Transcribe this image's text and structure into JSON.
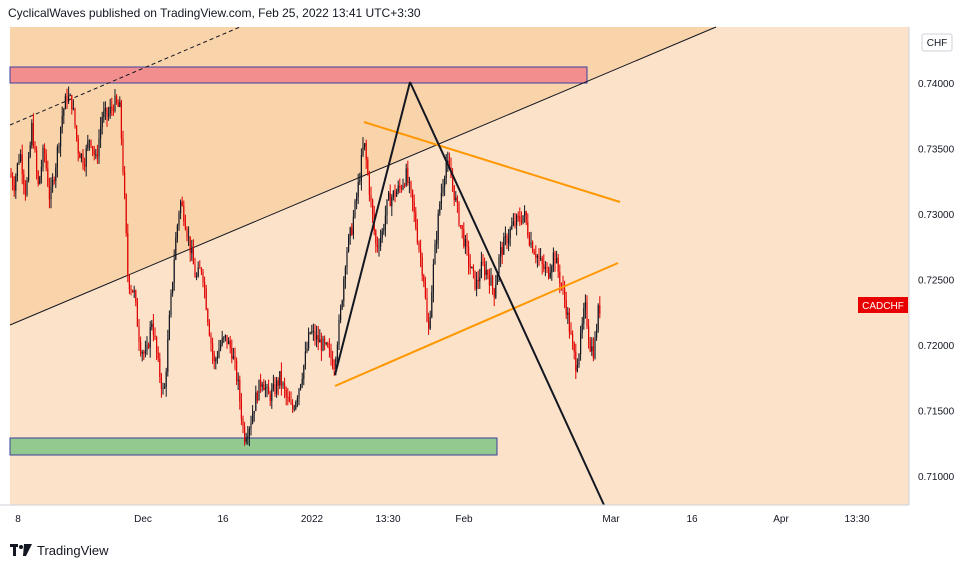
{
  "header": {
    "publish_line": "CyclicalWaves published on TradingView.com, Feb 25, 2022 13:41 UTC+3:30"
  },
  "footer": {
    "brand": "TradingView"
  },
  "colors": {
    "background": "#fbe2c8",
    "upper_zone": "#f9d3a9",
    "up_candle": "#131722",
    "down_candle": "#e00000",
    "resistance_zone": "#f28e8e",
    "support_zone": "#93c98f",
    "orange_line": "#ff9800",
    "price_label": "#e80000"
  },
  "chart_data": {
    "type": "candlestick",
    "symbol": "CADCHF",
    "currency_label": "CHF",
    "y_ticks": [
      "0.74000",
      "0.73500",
      "0.73000",
      "0.72500",
      "0.72000",
      "0.71500",
      "0.71000"
    ],
    "x_ticks": [
      "8",
      "Dec",
      "16",
      "2022",
      "13:30",
      "Feb",
      "Mar",
      "16",
      "Apr",
      "13:30"
    ],
    "ylim": [
      0.7067,
      0.7447
    ],
    "price_anchors": [
      [
        8,
        0.7335
      ],
      [
        14,
        0.7322
      ],
      [
        20,
        0.7348
      ],
      [
        26,
        0.7315
      ],
      [
        32,
        0.7368
      ],
      [
        38,
        0.732
      ],
      [
        44,
        0.735
      ],
      [
        50,
        0.731
      ],
      [
        56,
        0.734
      ],
      [
        62,
        0.7375
      ],
      [
        67,
        0.739
      ],
      [
        72,
        0.7385
      ],
      [
        78,
        0.735
      ],
      [
        84,
        0.734
      ],
      [
        90,
        0.736
      ],
      [
        96,
        0.734
      ],
      [
        102,
        0.7375
      ],
      [
        108,
        0.7375
      ],
      [
        114,
        0.7385
      ],
      [
        120,
        0.738
      ],
      [
        124,
        0.732
      ],
      [
        128,
        0.725
      ],
      [
        134,
        0.724
      ],
      [
        140,
        0.72
      ],
      [
        146,
        0.719
      ],
      [
        152,
        0.722
      ],
      [
        158,
        0.7185
      ],
      [
        164,
        0.716
      ],
      [
        170,
        0.7225
      ],
      [
        175,
        0.7275
      ],
      [
        180,
        0.731
      ],
      [
        184,
        0.73
      ],
      [
        190,
        0.7275
      ],
      [
        196,
        0.725
      ],
      [
        202,
        0.726
      ],
      [
        208,
        0.722
      ],
      [
        214,
        0.7185
      ],
      [
        220,
        0.72
      ],
      [
        226,
        0.7205
      ],
      [
        232,
        0.7195
      ],
      [
        238,
        0.717
      ],
      [
        244,
        0.713
      ],
      [
        250,
        0.714
      ],
      [
        256,
        0.716
      ],
      [
        262,
        0.7175
      ],
      [
        268,
        0.716
      ],
      [
        274,
        0.7165
      ],
      [
        280,
        0.7175
      ],
      [
        286,
        0.716
      ],
      [
        292,
        0.715
      ],
      [
        298,
        0.7165
      ],
      [
        304,
        0.7185
      ],
      [
        310,
        0.721
      ],
      [
        316,
        0.7205
      ],
      [
        322,
        0.72
      ],
      [
        328,
        0.7195
      ],
      [
        334,
        0.7185
      ],
      [
        340,
        0.722
      ],
      [
        346,
        0.727
      ],
      [
        352,
        0.729
      ],
      [
        358,
        0.732
      ],
      [
        364,
        0.7355
      ],
      [
        370,
        0.7315
      ],
      [
        376,
        0.7275
      ],
      [
        382,
        0.7285
      ],
      [
        388,
        0.731
      ],
      [
        394,
        0.7315
      ],
      [
        400,
        0.732
      ],
      [
        406,
        0.733
      ],
      [
        412,
        0.731
      ],
      [
        418,
        0.728
      ],
      [
        424,
        0.725
      ],
      [
        428,
        0.7205
      ],
      [
        434,
        0.7265
      ],
      [
        440,
        0.731
      ],
      [
        446,
        0.734
      ],
      [
        452,
        0.7325
      ],
      [
        458,
        0.73
      ],
      [
        464,
        0.728
      ],
      [
        470,
        0.726
      ],
      [
        476,
        0.7245
      ],
      [
        482,
        0.726
      ],
      [
        488,
        0.7255
      ],
      [
        494,
        0.724
      ],
      [
        500,
        0.727
      ],
      [
        506,
        0.728
      ],
      [
        512,
        0.729
      ],
      [
        518,
        0.7295
      ],
      [
        524,
        0.73
      ],
      [
        530,
        0.728
      ],
      [
        536,
        0.727
      ],
      [
        542,
        0.726
      ],
      [
        548,
        0.7255
      ],
      [
        554,
        0.727
      ],
      [
        560,
        0.725
      ],
      [
        566,
        0.723
      ],
      [
        572,
        0.72
      ],
      [
        576,
        0.7185
      ],
      [
        580,
        0.72
      ],
      [
        585,
        0.723
      ],
      [
        590,
        0.72
      ],
      [
        594,
        0.7195
      ],
      [
        598,
        0.7225
      ],
      [
        601,
        0.723
      ]
    ],
    "last_price_label": "CADCHF",
    "drawings": {
      "resistance_zone": [
        0.7395,
        0.7408
      ],
      "support_zone": [
        0.7115,
        0.7128
      ],
      "upper_channel_line": [
        [
          0.7214,
          0.733
        ]
      ],
      "orange_upper_line": [
        0.737,
        0.731
      ],
      "orange_lower_line": [
        0.7168,
        0.7262
      ],
      "black_peak": 0.74
    }
  }
}
